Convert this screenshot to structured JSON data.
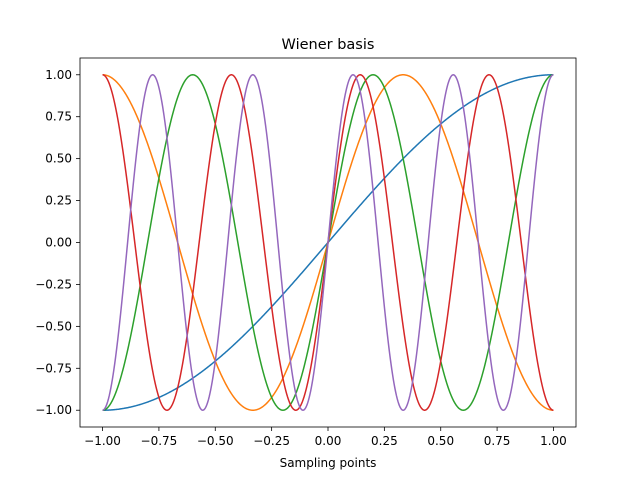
{
  "chart_data": {
    "type": "line",
    "title": "Wiener basis",
    "xlabel": "Sampling points",
    "ylabel": "",
    "xlim": [
      -1.1,
      1.1
    ],
    "ylim": [
      -1.1,
      1.1
    ],
    "xticks": [
      -1.0,
      -0.75,
      -0.5,
      -0.25,
      0.0,
      0.25,
      0.5,
      0.75,
      1.0
    ],
    "xtick_labels": [
      "−1.00",
      "−0.75",
      "−0.50",
      "−0.25",
      "0.00",
      "0.25",
      "0.50",
      "0.75",
      "1.00"
    ],
    "yticks": [
      -1.0,
      -0.75,
      -0.5,
      -0.25,
      0.0,
      0.25,
      0.5,
      0.75,
      1.0
    ],
    "ytick_labels": [
      "−1.00",
      "−0.75",
      "−0.50",
      "−0.25",
      "0.00",
      "0.25",
      "0.50",
      "0.75",
      "1.00"
    ],
    "grid": false,
    "legend": "none",
    "x_range": [
      -1.0,
      1.0
    ],
    "series": [
      {
        "formula": "y = sin(pi/2 * x)",
        "frequency": 0.5,
        "color": "#1f77b4"
      },
      {
        "formula": "y = sin(3pi/2 * x)",
        "frequency": 1.5,
        "color": "#ff7f0e"
      },
      {
        "formula": "y = sin(5pi/2 * x)",
        "frequency": 2.5,
        "color": "#2ca02c"
      },
      {
        "formula": "y = sin(7pi/2 * x)",
        "frequency": 3.5,
        "color": "#d62728"
      },
      {
        "formula": "y = sin(9pi/2 * x)",
        "frequency": 4.5,
        "color": "#9467bd"
      }
    ]
  }
}
